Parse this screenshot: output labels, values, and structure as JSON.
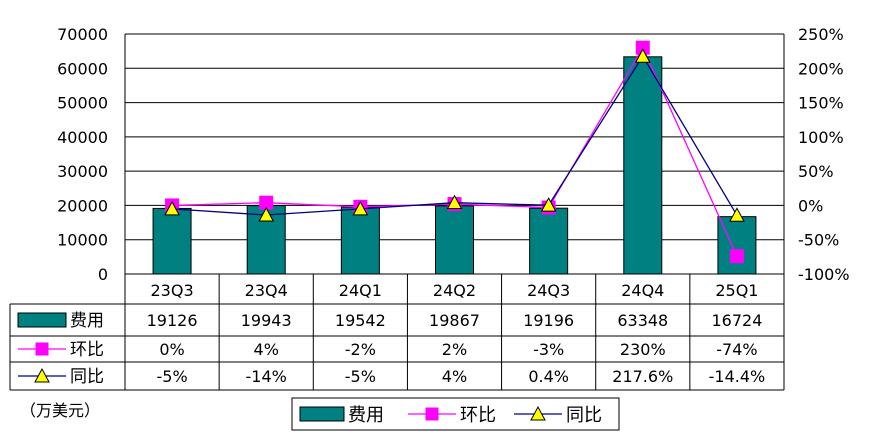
{
  "chart_data": {
    "type": "bar",
    "categories": [
      "23Q3",
      "23Q4",
      "24Q1",
      "24Q2",
      "24Q3",
      "24Q4",
      "25Q1"
    ],
    "series": [
      {
        "name": "费用",
        "type": "bar",
        "axis": "left",
        "values": [
          19126,
          19943,
          19542,
          19867,
          19196,
          63348,
          16724
        ],
        "color": "#008080"
      },
      {
        "name": "环比",
        "type": "line",
        "axis": "right",
        "values": [
          0,
          4,
          -2,
          2,
          -3,
          230,
          -74
        ],
        "color": "#ff00ff",
        "marker": "square"
      },
      {
        "name": "同比",
        "type": "line",
        "axis": "right",
        "values": [
          -5,
          -14,
          -5,
          4,
          0.4,
          217.6,
          -14.4
        ],
        "color": "#000080",
        "marker": "triangle",
        "marker_color": "#ffff00"
      }
    ],
    "left_axis": {
      "min": 0,
      "max": 70000,
      "step": 10000,
      "ticks": [
        "0",
        "10000",
        "20000",
        "30000",
        "40000",
        "50000",
        "60000",
        "70000"
      ]
    },
    "right_axis": {
      "min": -100,
      "max": 250,
      "step": 50,
      "ticks": [
        "-100%",
        "-50%",
        "0%",
        "50%",
        "100%",
        "150%",
        "200%",
        "250%"
      ]
    },
    "table": {
      "rows": [
        {
          "name": "费用",
          "cells": [
            "19126",
            "19943",
            "19542",
            "19867",
            "19196",
            "63348",
            "16724"
          ]
        },
        {
          "name": "环比",
          "cells": [
            "0%",
            "4%",
            "-2%",
            "2%",
            "-3%",
            "230%",
            "-74%"
          ]
        },
        {
          "name": "同比",
          "cells": [
            "-5%",
            "-14%",
            "-5%",
            "4%",
            "0.4%",
            "217.6%",
            "-14.4%"
          ]
        }
      ]
    },
    "unit_label": "（万美元）",
    "legend": {
      "position": "bottom",
      "items": [
        "费用",
        "环比",
        "同比"
      ]
    },
    "grid": true
  }
}
